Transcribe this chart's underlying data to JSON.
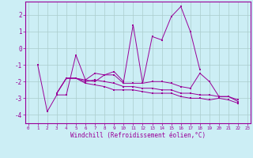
{
  "xlabel": "Windchill (Refroidissement éolien,°C)",
  "bg_color": "#cceef5",
  "line_color": "#990099",
  "grid_color": "#aacccc",
  "x_ticks": [
    0,
    1,
    2,
    3,
    4,
    5,
    6,
    7,
    8,
    9,
    10,
    11,
    12,
    13,
    14,
    15,
    16,
    17,
    18,
    19,
    20,
    21,
    22,
    23
  ],
  "xlim": [
    -0.3,
    23.3
  ],
  "ylim": [
    -4.5,
    2.8
  ],
  "yticks": [
    -4,
    -3,
    -2,
    -1,
    0,
    1,
    2
  ],
  "series": [
    [
      null,
      -1.0,
      -3.8,
      -2.8,
      -2.8,
      -0.4,
      -1.9,
      -1.5,
      -1.6,
      -1.4,
      -2.0,
      1.4,
      -2.1,
      0.7,
      0.5,
      1.9,
      2.5,
      1.0,
      -1.3,
      null,
      null,
      null,
      null,
      null
    ],
    [
      null,
      null,
      null,
      -2.7,
      -1.8,
      -1.8,
      -1.9,
      -2.0,
      -1.6,
      -1.6,
      -2.1,
      -2.1,
      -2.1,
      -2.0,
      -2.0,
      -2.1,
      -2.3,
      -2.4,
      -1.5,
      -2.0,
      -2.9,
      -2.9,
      -3.2,
      null
    ],
    [
      null,
      null,
      null,
      -2.7,
      -1.8,
      -1.8,
      -2.0,
      -1.9,
      -2.0,
      -2.1,
      -2.3,
      -2.3,
      -2.4,
      -2.4,
      -2.5,
      -2.5,
      -2.7,
      -2.7,
      -2.8,
      -2.8,
      -2.9,
      -2.9,
      -3.1,
      null
    ],
    [
      null,
      null,
      null,
      -2.7,
      -1.8,
      -1.8,
      -2.1,
      -2.2,
      -2.3,
      -2.5,
      -2.5,
      -2.5,
      -2.6,
      -2.7,
      -2.7,
      -2.7,
      -2.9,
      -3.0,
      -3.0,
      -3.1,
      -3.0,
      -3.1,
      -3.3,
      null
    ]
  ]
}
